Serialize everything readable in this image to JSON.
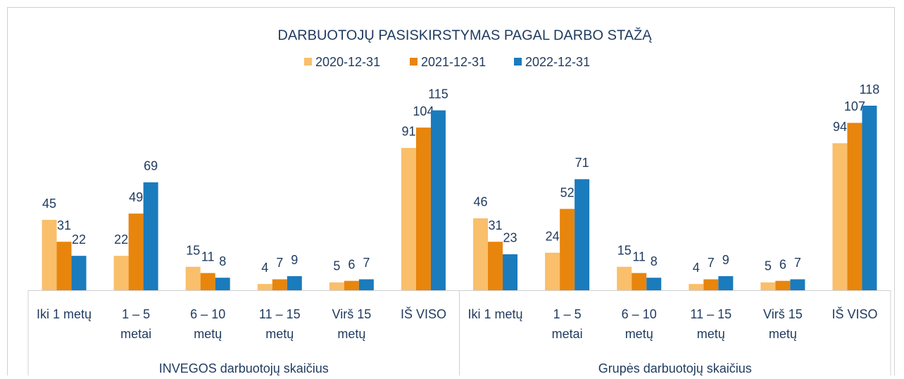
{
  "chart_data": {
    "type": "bar",
    "title": "DARBUOTOJŲ PASISKIRSTYMAS PAGAL DARBO STAŽĄ",
    "groups": [
      "INVEGOS darbuotojų skaičius",
      "Grupės darbuotojų skaičius"
    ],
    "categories": [
      [
        "Iki 1 metų"
      ],
      [
        "1 – 5",
        "metai"
      ],
      [
        "6 – 10",
        "metų"
      ],
      [
        "11 – 15",
        "metų"
      ],
      [
        "Virš 15",
        "metų"
      ],
      [
        "IŠ VISO"
      ],
      [
        "Iki 1 metų"
      ],
      [
        "1 – 5",
        "metai"
      ],
      [
        "6 – 10",
        "metų"
      ],
      [
        "11 – 15",
        "metų"
      ],
      [
        "Virš 15",
        "metų"
      ],
      [
        "IŠ VISO"
      ]
    ],
    "series": [
      {
        "name": "2020-12-31",
        "color": "#f9bf6b",
        "values": [
          45,
          22,
          15,
          4,
          5,
          91,
          46,
          24,
          15,
          4,
          5,
          94
        ]
      },
      {
        "name": "2021-12-31",
        "color": "#e8850c",
        "values": [
          31,
          49,
          11,
          7,
          6,
          104,
          31,
          52,
          11,
          7,
          6,
          107
        ]
      },
      {
        "name": "2022-12-31",
        "color": "#1a7bbd",
        "values": [
          22,
          69,
          8,
          9,
          7,
          115,
          23,
          71,
          8,
          9,
          7,
          118
        ]
      }
    ],
    "legend": "top"
  }
}
